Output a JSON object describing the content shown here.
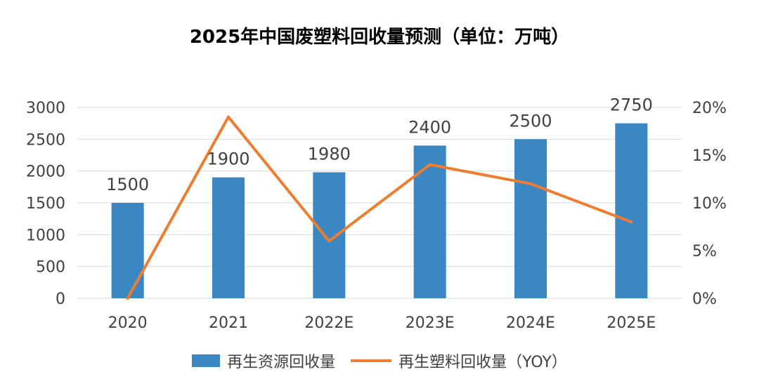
{
  "chart_data": {
    "type": "bar+line",
    "title": "2025年中国废塑料回收量预测（单位：万吨）",
    "categories": [
      "2020",
      "2021",
      "2022E",
      "2023E",
      "2024E",
      "2025E"
    ],
    "series": [
      {
        "name": "再生资源回收量",
        "type": "bar",
        "axis": "left",
        "values": [
          1500,
          1900,
          1980,
          2400,
          2500,
          2750
        ],
        "color": "#3A87C3"
      },
      {
        "name": "再生塑料回收量（YOY）",
        "type": "line",
        "axis": "right",
        "values": [
          0,
          19,
          6,
          14,
          12,
          8
        ],
        "color": "#ED7D31"
      }
    ],
    "y_left": {
      "min": 0,
      "max": 3000,
      "ticks": [
        "0",
        "500",
        "1000",
        "1500",
        "2000",
        "2500",
        "3000"
      ]
    },
    "y_right": {
      "min": 0,
      "max": 20,
      "ticks": [
        "0%",
        "5%",
        "10%",
        "15%",
        "20%"
      ]
    },
    "data_labels": [
      "1500",
      "1900",
      "1980",
      "2400",
      "2500",
      "2750"
    ],
    "grid": true,
    "legend_position": "bottom"
  }
}
